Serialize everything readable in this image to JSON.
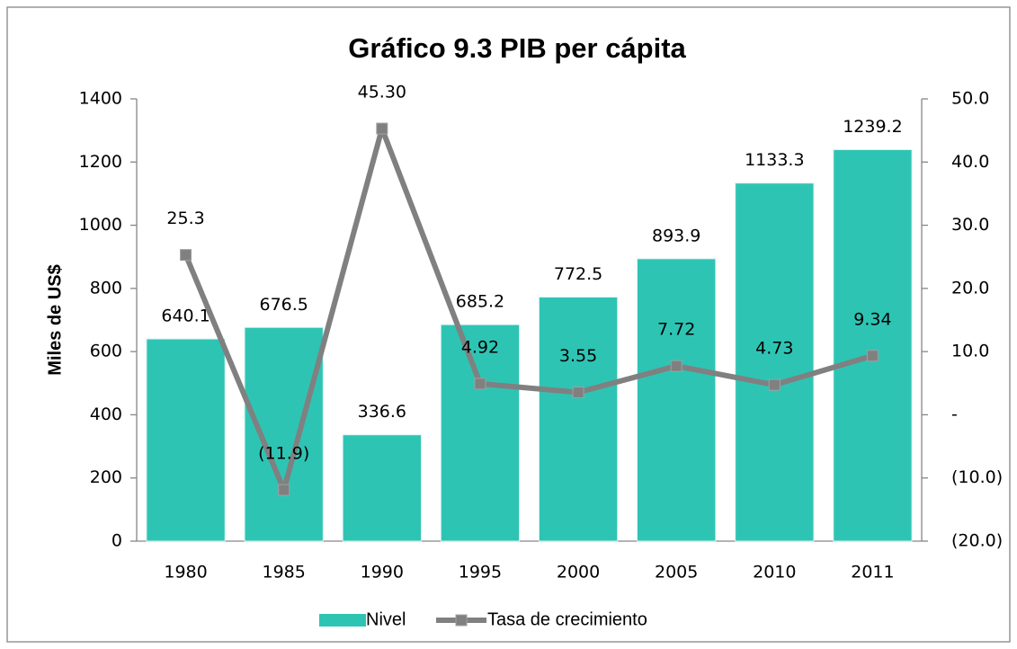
{
  "chart_data": {
    "type": "bar",
    "title": "Gráfico 9.3 PIB per cápita",
    "y_label": "Miles de US$",
    "categories": [
      "1980",
      "1985",
      "1990",
      "1995",
      "2000",
      "2005",
      "2010",
      "2011"
    ],
    "series": [
      {
        "name": "Nivel",
        "type": "bar",
        "color": "#2ec4b4",
        "values": [
          640.1,
          676.5,
          336.6,
          685.2,
          772.5,
          893.9,
          1133.3,
          1239.2
        ]
      },
      {
        "name": "Tasa de crecimiento",
        "type": "line",
        "axis": "y2",
        "color": "#808080",
        "values": [
          25.3,
          -11.9,
          45.3,
          4.92,
          3.55,
          7.72,
          4.73,
          9.34
        ],
        "value_labels": [
          "25.3",
          "(11.9)",
          "45.30",
          "4.92",
          "3.55",
          "7.72",
          "4.73",
          "9.34"
        ]
      }
    ],
    "ylim": [
      0,
      1400
    ],
    "yticks": [
      0,
      200,
      400,
      600,
      800,
      1000,
      1200,
      1400
    ],
    "y2lim": [
      -20,
      50
    ],
    "y2ticks": [
      {
        "value": -20,
        "label": "(20.0)"
      },
      {
        "value": -10,
        "label": "(10.0)"
      },
      {
        "value": 0,
        "label": "-"
      },
      {
        "value": 10,
        "label": "10.0"
      },
      {
        "value": 20,
        "label": "20.0"
      },
      {
        "value": 30,
        "label": "30.0"
      },
      {
        "value": 40,
        "label": "40.0"
      },
      {
        "value": 50,
        "label": "50.0"
      }
    ],
    "grid": false,
    "legend": "bottom"
  }
}
